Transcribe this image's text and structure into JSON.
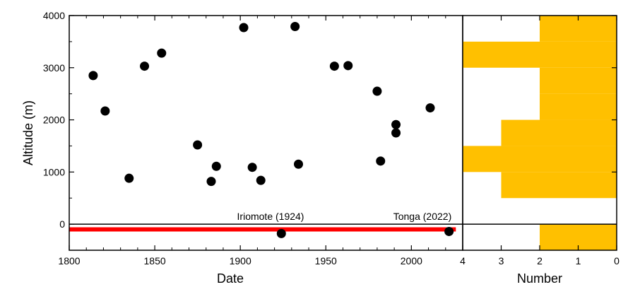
{
  "chart_data": [
    {
      "type": "scatter",
      "xlabel": "Date",
      "ylabel": "Altitude (m)",
      "xlim": [
        1800,
        2030
      ],
      "ylim": [
        -500,
        4000
      ],
      "xticks": [
        "1800",
        "1850",
        "1900",
        "1950",
        "2000"
      ],
      "yticks": [
        "0",
        "1000",
        "2000",
        "3000",
        "4000"
      ],
      "grid": false,
      "points": [
        {
          "x": 1814,
          "y": 2850
        },
        {
          "x": 1821,
          "y": 2170
        },
        {
          "x": 1835,
          "y": 880
        },
        {
          "x": 1844,
          "y": 3030
        },
        {
          "x": 1854,
          "y": 3280
        },
        {
          "x": 1875,
          "y": 1520
        },
        {
          "x": 1883,
          "y": 820
        },
        {
          "x": 1886,
          "y": 1110
        },
        {
          "x": 1902,
          "y": 3770
        },
        {
          "x": 1907,
          "y": 1090
        },
        {
          "x": 1912,
          "y": 840
        },
        {
          "x": 1924,
          "y": -180
        },
        {
          "x": 1932,
          "y": 3790
        },
        {
          "x": 1934,
          "y": 1150
        },
        {
          "x": 1955,
          "y": 3030
        },
        {
          "x": 1963,
          "y": 3040
        },
        {
          "x": 1980,
          "y": 2550
        },
        {
          "x": 1982,
          "y": 1210
        },
        {
          "x": 1991,
          "y": 1910
        },
        {
          "x": 1991,
          "y": 1750
        },
        {
          "x": 2011,
          "y": 2230
        },
        {
          "x": 2022,
          "y": -140
        }
      ],
      "sea_level_bar": {
        "x": [
          1800,
          2026
        ],
        "y": -100,
        "color": "#ff0000"
      },
      "annotations": [
        {
          "text": "Iriomote (1924)",
          "x": 1924,
          "y": 150
        },
        {
          "text": "Tonga (2022)",
          "x": 2022,
          "y": 150
        }
      ],
      "marker_color": "#000000"
    },
    {
      "type": "histogram",
      "orientation": "horizontal",
      "xlabel": "Number",
      "xlim": [
        4,
        0
      ],
      "xticks": [
        "4",
        "3",
        "2",
        "1",
        "0"
      ],
      "ylim": [
        -500,
        4000
      ],
      "color": "#ffc000",
      "bins": [
        {
          "from": -500,
          "to": 0,
          "count": 2
        },
        {
          "from": 0,
          "to": 500,
          "count": 0
        },
        {
          "from": 500,
          "to": 1000,
          "count": 3
        },
        {
          "from": 1000,
          "to": 1500,
          "count": 4
        },
        {
          "from": 1500,
          "to": 2000,
          "count": 3
        },
        {
          "from": 2000,
          "to": 2500,
          "count": 2
        },
        {
          "from": 2500,
          "to": 3000,
          "count": 2
        },
        {
          "from": 3000,
          "to": 3500,
          "count": 4
        },
        {
          "from": 3500,
          "to": 4000,
          "count": 2
        }
      ]
    }
  ]
}
